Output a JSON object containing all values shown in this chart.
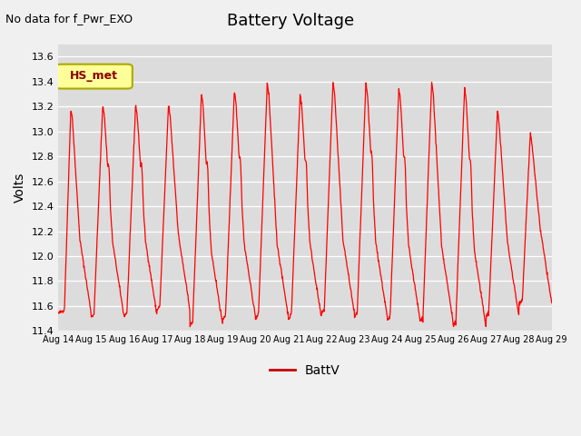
{
  "title": "Battery Voltage",
  "top_left_text": "No data for f_Pwr_EXO",
  "ylabel": "Volts",
  "legend_label": "BattV",
  "line_color": "#FF0000",
  "legend_line_color": "#CC0000",
  "background_color": "#DCDCDC",
  "ylim": [
    11.4,
    13.7
  ],
  "yticks": [
    11.4,
    11.6,
    11.8,
    12.0,
    12.2,
    12.4,
    12.6,
    12.8,
    13.0,
    13.2,
    13.4,
    13.6
  ],
  "x_labels": [
    "Aug 14",
    "Aug 15",
    "Aug 16",
    "Aug 17",
    "Aug 18",
    "Aug 19",
    "Aug 20",
    "Aug 21",
    "Aug 22",
    "Aug 23",
    "Aug 24",
    "Aug 25",
    "Aug 26",
    "Aug 27",
    "Aug 28",
    "Aug 29"
  ],
  "hs_met_label": "HS_met",
  "hs_met_box_color": "#FFFF99",
  "hs_met_edge_color": "#AAAA00",
  "hs_met_text_color": "#8B0000"
}
